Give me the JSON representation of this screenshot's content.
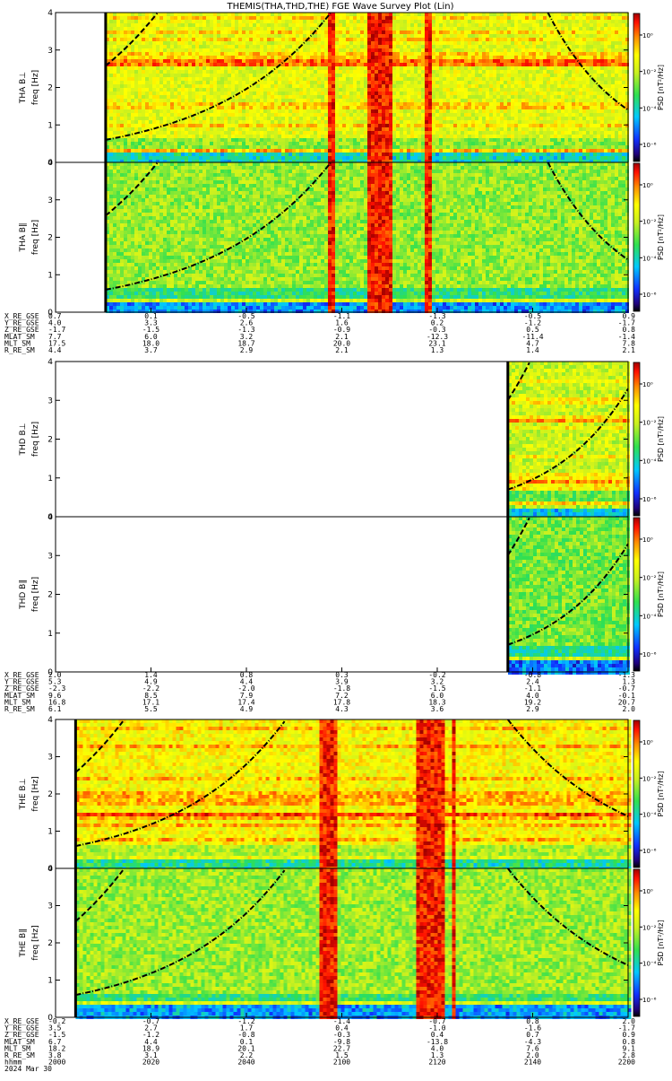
{
  "title": "THEMIS(THA,THD,THE) FGE Wave Survey Plot (Lin)",
  "chart_data": [
    {
      "type": "heatmap",
      "probe": "THA",
      "panels": [
        {
          "label": "THA B⊥",
          "units": "freq [Hz]",
          "cbar_label": "PSD [nT²/Hz]",
          "cbar_ticks": [
            "10⁰",
            "10⁻²",
            "10⁻⁴",
            "10⁻⁶"
          ]
        },
        {
          "label": "THA B∥",
          "units": "freq [Hz]",
          "cbar_label": "PSD [nT²/Hz]",
          "cbar_ticks": [
            "10⁰",
            "10⁻²",
            "10⁻⁴",
            "10⁻⁶"
          ]
        }
      ],
      "ylim": [
        0,
        4
      ],
      "yticks": [
        "0",
        "1",
        "2",
        "3",
        "4"
      ],
      "xlim": [
        2000,
        2200
      ],
      "data_start": 2017.5,
      "activity_bands": [
        [
          2095.5,
          2098
        ],
        [
          2109.5,
          2117.5
        ],
        [
          2128.5,
          2132
        ]
      ],
      "fce_curve": {
        "f0": 0.6,
        "f_end": 3.98,
        "t_end": 2096,
        "t_left": 2172
      },
      "ephemeris": {
        "labels": [
          "X_RE_GSE",
          "Y_RE_GSE",
          "Z_RE_GSE",
          "MLAT_SM",
          "MLT_SM",
          "R_RE_SM"
        ],
        "columns": [
          [
            "0.7",
            "4.0",
            "-1.7",
            "7.7",
            "17.5",
            "4.4"
          ],
          [
            "0.1",
            "3.3",
            "-1.5",
            "6.0",
            "18.0",
            "3.7"
          ],
          [
            "-0.5",
            "2.6",
            "-1.3",
            "3.2",
            "18.7",
            "2.9"
          ],
          [
            "-1.1",
            "1.6",
            "-0.9",
            "2.1",
            "20.0",
            "2.1"
          ],
          [
            "-1.3",
            "0.2",
            "-0.3",
            "-12.3",
            "23.1",
            "1.3"
          ],
          [
            "-0.5",
            "-1.2",
            "0.5",
            "-11.4",
            "4.7",
            "1.4"
          ],
          [
            "0.9",
            "-1.7",
            "0.8",
            "-1.4",
            "7.8",
            "2.1"
          ]
        ]
      }
    },
    {
      "type": "heatmap",
      "probe": "THD",
      "panels": [
        {
          "label": "THD B⊥",
          "units": "freq [Hz]",
          "cbar_label": "PSD [nT²/Hz]",
          "cbar_ticks": [
            "10⁰",
            "10⁻²",
            "10⁻⁴",
            "10⁻⁶"
          ]
        },
        {
          "label": "THD B∥",
          "units": "freq [Hz]",
          "cbar_label": "PSD [nT²/Hz]",
          "cbar_ticks": [
            "10⁰",
            "10⁻²",
            "10⁻⁴",
            "10⁻⁶"
          ]
        }
      ],
      "ylim": [
        0,
        4
      ],
      "yticks": [
        "0",
        "1",
        "2",
        "3",
        "4"
      ],
      "xlim": [
        2000,
        2200
      ],
      "data_start": 2158,
      "activity_bands": [],
      "fce_curve": {
        "f0": 0.7,
        "f_end": 3.3,
        "t_end": 2200,
        "t_left": 2172
      },
      "ephemeris": {
        "labels": [
          "X_RE_GSE",
          "Y_RE_GSE",
          "Z_RE_GSE",
          "MLAT_SM",
          "MLT_SM",
          "R_RE_SM"
        ],
        "columns": [
          [
            "2.0",
            "5.3",
            "-2.3",
            "9.6",
            "16.8",
            "6.1"
          ],
          [
            "1.4",
            "4.9",
            "-2.2",
            "8.5",
            "17.1",
            "5.5"
          ],
          [
            "0.8",
            "4.4",
            "-2.0",
            "7.9",
            "17.4",
            "4.9"
          ],
          [
            "0.3",
            "3.9",
            "-1.8",
            "7.2",
            "17.8",
            "4.3"
          ],
          [
            "-0.2",
            "3.2",
            "-1.5",
            "6.0",
            "18.3",
            "3.6"
          ],
          [
            "-0.8",
            "2.4",
            "-1.1",
            "4.0",
            "19.2",
            "2.9"
          ],
          [
            "-1.3",
            "1.3",
            "-0.7",
            "-0.1",
            "20.7",
            "2.0"
          ]
        ]
      }
    },
    {
      "type": "heatmap",
      "probe": "THE",
      "panels": [
        {
          "label": "THE B⊥",
          "units": "freq [Hz]",
          "cbar_label": "PSD [nT²/Hz]",
          "cbar_ticks": [
            "10⁰",
            "10⁻²",
            "10⁻⁴",
            "10⁻⁶"
          ]
        },
        {
          "label": "THE B∥",
          "units": "freq [Hz]",
          "cbar_label": "PSD [nT²/Hz]",
          "cbar_ticks": [
            "10⁰",
            "10⁻²",
            "10⁻⁴",
            "10⁻⁶"
          ]
        }
      ],
      "ylim": [
        0,
        4
      ],
      "yticks": [
        "0",
        "1",
        "2",
        "3",
        "4"
      ],
      "xlim": [
        2000,
        2200
      ],
      "data_start": 2007,
      "activity_bands": [
        [
          2092,
          2098
        ],
        [
          2126,
          2136
        ],
        [
          2138,
          2140
        ]
      ],
      "fce_curve": {
        "f0": 0.6,
        "f_end": 3.95,
        "t_end": 2080,
        "t_left": 2158
      },
      "ephemeris": {
        "labels": [
          "X_RE_GSE",
          "Y_RE_GSE",
          "Z_RE_GSE",
          "MLAT_SM",
          "MLT_SM",
          "R_RE_SM",
          "hhmm",
          "2024 Mar 30"
        ],
        "columns": [
          [
            "-0.2",
            "3.5",
            "-1.5",
            "6.7",
            "18.2",
            "3.8",
            "2000"
          ],
          [
            "-0.7",
            "2.7",
            "-1.2",
            "4.4",
            "18.9",
            "3.1",
            "2020"
          ],
          [
            "-1.2",
            "1.7",
            "-0.8",
            "0.1",
            "20.1",
            "2.2",
            "2040"
          ],
          [
            "-1.4",
            "0.4",
            "-0.3",
            "-9.8",
            "22.7",
            "1.5",
            "2100"
          ],
          [
            "-0.7",
            "-1.0",
            "0.4",
            "-13.8",
            "4.0",
            "1.3",
            "2120"
          ],
          [
            "0.8",
            "-1.6",
            "0.7",
            "-4.3",
            "7.6",
            "2.0",
            "2140"
          ],
          [
            "2.0",
            "-1.7",
            "0.9",
            "0.8",
            "9.1",
            "2.8",
            "2200"
          ]
        ]
      }
    }
  ]
}
